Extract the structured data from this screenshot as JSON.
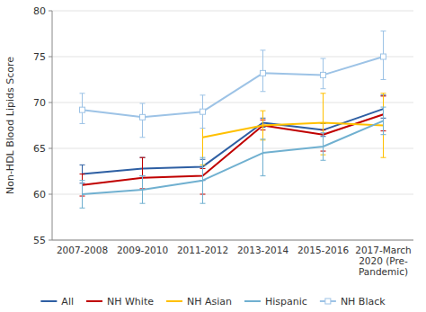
{
  "chart_data": {
    "type": "line",
    "categories": [
      "2007-2008",
      "2009-2010",
      "2011-2012",
      "2013-2014",
      "2015-2016",
      "2017-March\n2020 (Pre-\nPandemic)"
    ],
    "series": [
      {
        "name": "All",
        "color": "#2e5fa3",
        "line_style": "solid",
        "values": [
          62.2,
          62.8,
          63.0,
          67.8,
          67.0,
          69.3
        ],
        "yerr_low": [
          1.0,
          0.8,
          1.5,
          0.5,
          0.7,
          1.0
        ],
        "yerr_high": [
          1.0,
          1.2,
          0.8,
          0.5,
          0.7,
          1.5
        ]
      },
      {
        "name": "NH White",
        "color": "#c00000",
        "line_style": "solid",
        "values": [
          61.0,
          61.8,
          62.0,
          67.5,
          66.5,
          68.7
        ],
        "yerr_low": [
          1.2,
          1.2,
          2.0,
          0.5,
          1.8,
          1.8
        ],
        "yerr_high": [
          1.2,
          2.2,
          0.8,
          0.6,
          0.5,
          2.0
        ]
      },
      {
        "name": "NH Asian",
        "color": "#ffc000",
        "line_style": "solid",
        "values": [
          null,
          null,
          66.2,
          67.5,
          67.8,
          67.5
        ],
        "yerr_low": [
          null,
          null,
          3.0,
          1.6,
          3.5,
          3.5
        ],
        "yerr_high": [
          null,
          null,
          2.8,
          1.6,
          3.2,
          3.5
        ]
      },
      {
        "name": "Hispanic",
        "color": "#70b0d0",
        "line_style": "solid",
        "values": [
          60.0,
          60.5,
          61.5,
          64.5,
          65.2,
          68.0
        ],
        "yerr_low": [
          1.5,
          1.5,
          2.5,
          2.5,
          1.5,
          1.5
        ],
        "yerr_high": [
          1.5,
          1.5,
          2.5,
          1.5,
          1.5,
          1.5
        ]
      },
      {
        "name": "NH Black",
        "color": "#9dc3e6",
        "line_style": "solid",
        "marker": "square",
        "values": [
          69.2,
          68.4,
          69.0,
          73.2,
          73.0,
          75.0
        ],
        "yerr_low": [
          1.5,
          2.2,
          1.8,
          2.0,
          1.5,
          2.5
        ],
        "yerr_high": [
          1.8,
          1.5,
          1.8,
          2.5,
          1.8,
          2.8
        ]
      }
    ],
    "y_label": "Non-HDL Blood Lipids Score",
    "ylim": [
      55,
      80
    ],
    "yticks": [
      55,
      60,
      65,
      70,
      75,
      80
    ],
    "grid": true,
    "legend": "bottom"
  }
}
